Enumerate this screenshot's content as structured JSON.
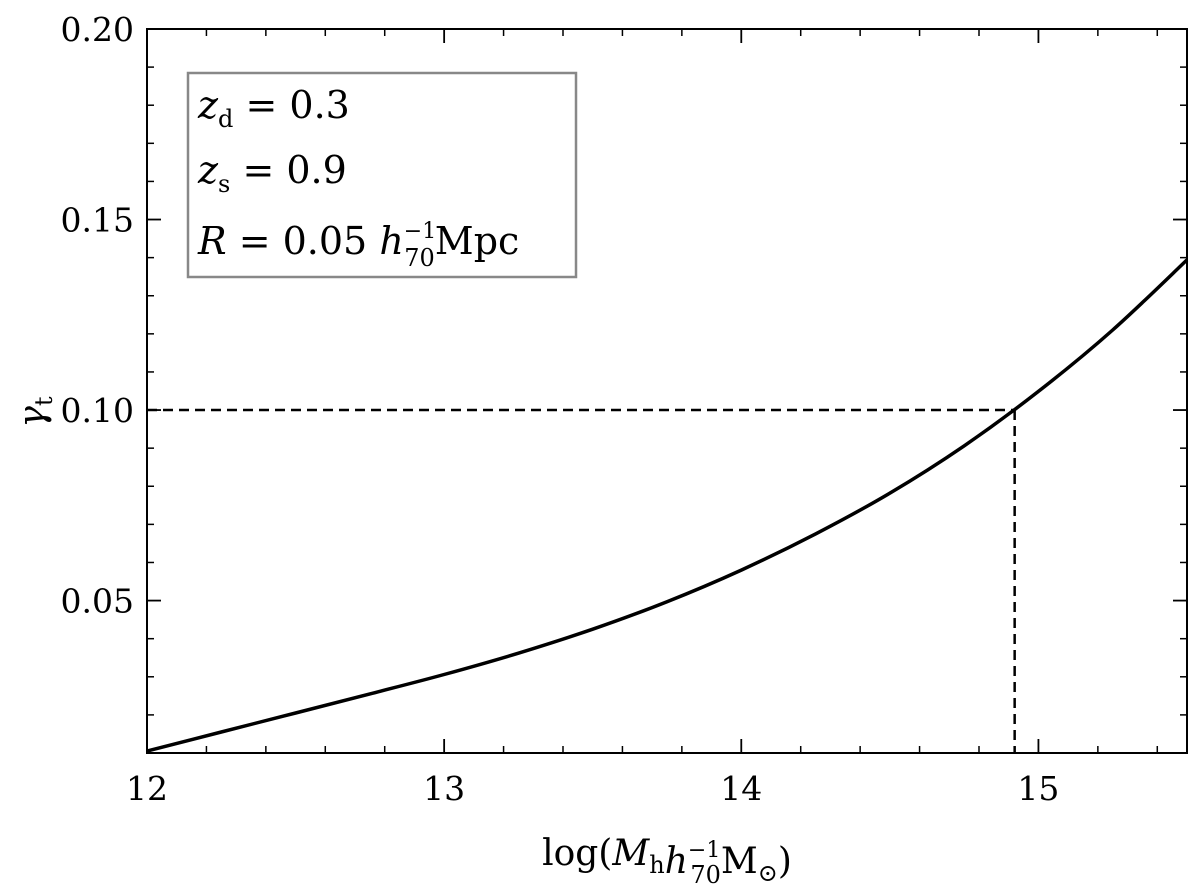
{
  "chart_data": {
    "type": "line",
    "xlabel": {
      "lead": "log(",
      "sym": "M",
      "sub": "h",
      "h": "h",
      "hsub": "70",
      "hsup": "−1",
      "unit": "M",
      "unitsub": "⊙",
      "tail": ")"
    },
    "ylabel": {
      "sym": "γ",
      "sub": "t"
    },
    "xlim": [
      12,
      15.5
    ],
    "ylim": [
      0.01,
      0.2
    ],
    "xticks": [
      12,
      13,
      14,
      15
    ],
    "xtick_labels": [
      "12",
      "13",
      "14",
      "15"
    ],
    "yticks": [
      0.05,
      0.1,
      0.15,
      0.2
    ],
    "ytick_labels": [
      "0.05",
      "0.10",
      "0.15",
      "0.20"
    ],
    "x_minor_step": 0.2,
    "y_minor_step": 0.01,
    "grid": false,
    "legend_position": "top-left",
    "annotation_box": [
      {
        "sym": "z",
        "sub": "d",
        "rest": " = 0.3"
      },
      {
        "sym": "z",
        "sub": "s",
        "rest": " = 0.9"
      },
      {
        "sym": "R",
        "rest": " = 0.05 ",
        "h": "h",
        "hsub": "70",
        "hsup": "−1",
        "unit": "Mpc"
      }
    ],
    "series": [
      {
        "style": "solid",
        "color": "#000000",
        "x": [
          12.0,
          12.25,
          12.5,
          12.75,
          13.0,
          13.25,
          13.5,
          13.75,
          14.0,
          14.25,
          14.5,
          14.75,
          15.0,
          15.25,
          15.5
        ],
        "y": [
          0.0105,
          0.0155,
          0.0205,
          0.0255,
          0.0306,
          0.0362,
          0.0425,
          0.0497,
          0.058,
          0.0675,
          0.0782,
          0.0906,
          0.1049,
          0.121,
          0.1394
        ]
      }
    ],
    "reference_lines": [
      {
        "style": "dashed",
        "x": [
          12.0,
          14.92
        ],
        "y": [
          0.1,
          0.1
        ]
      },
      {
        "style": "dashed",
        "x": [
          14.92,
          14.92
        ],
        "y": [
          0.1,
          0.01
        ]
      }
    ]
  }
}
